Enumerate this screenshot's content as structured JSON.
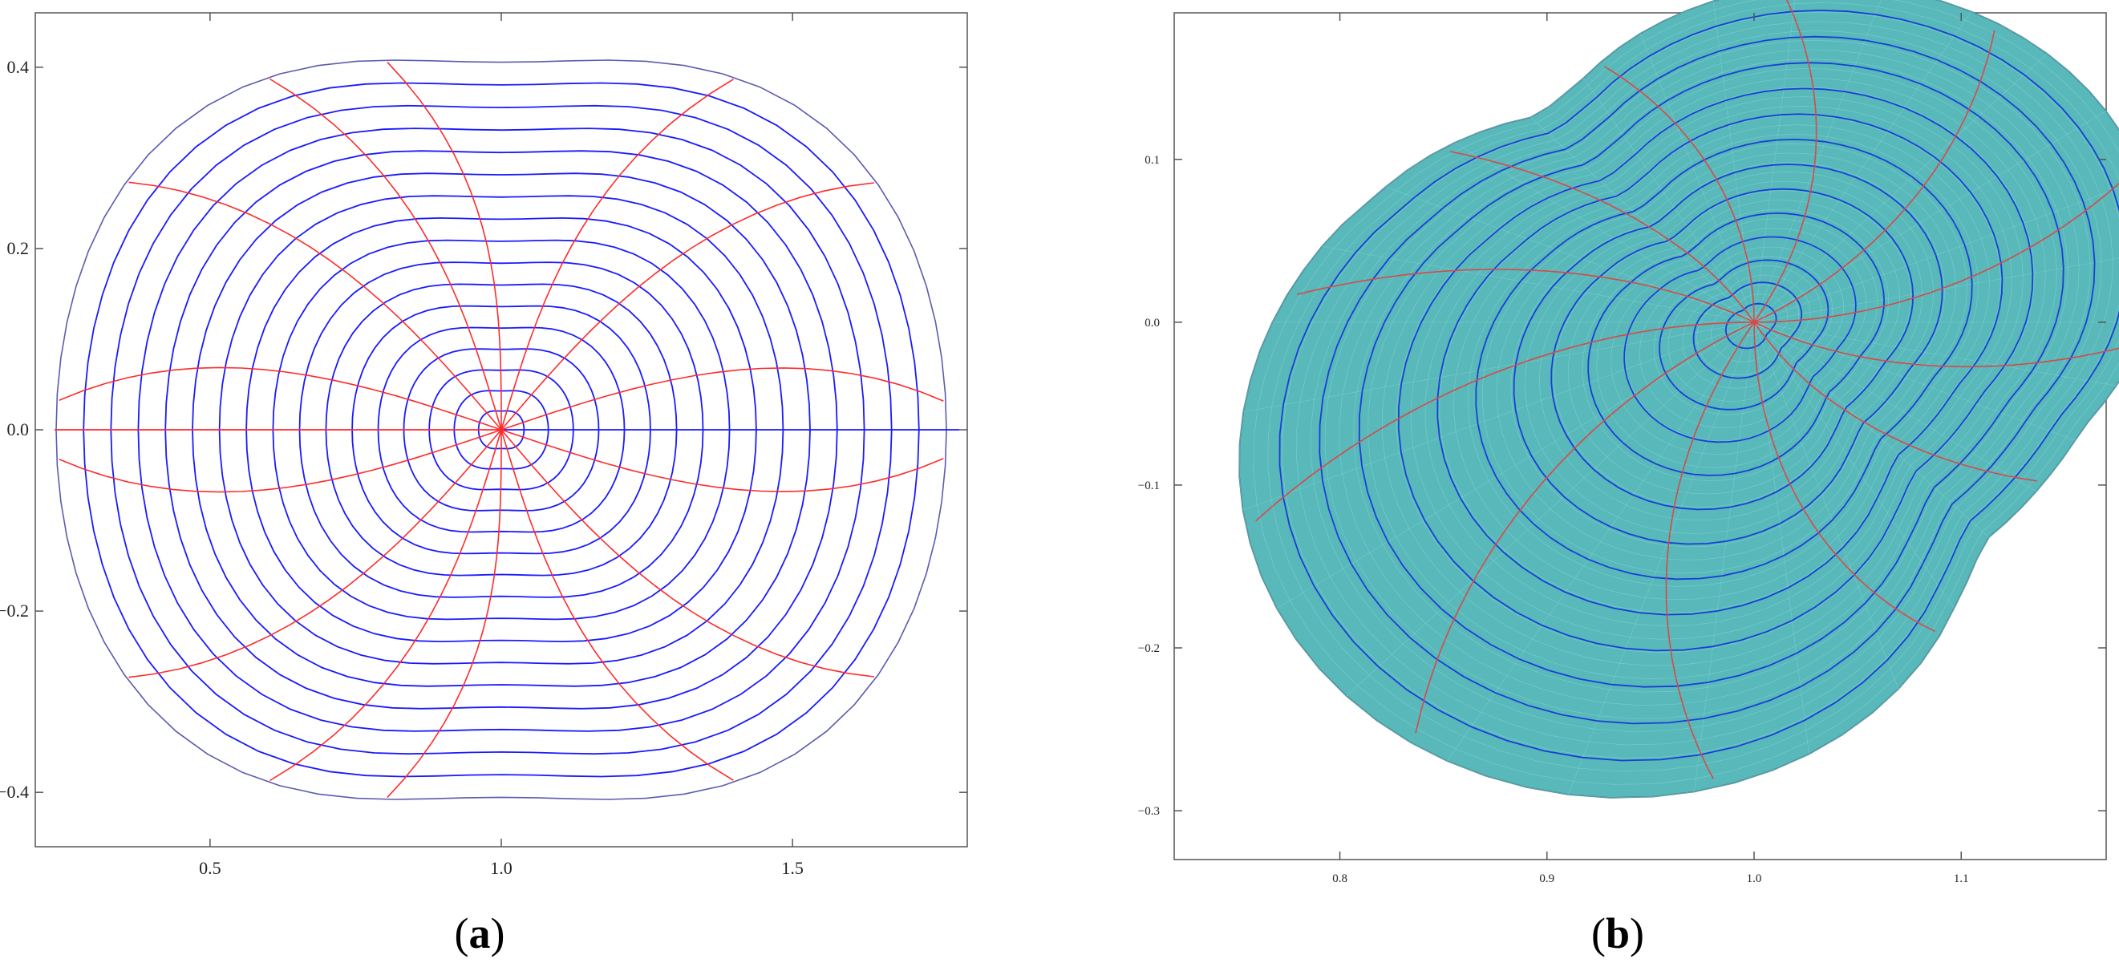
{
  "panels": [
    {
      "id": "a",
      "caption": "a",
      "x_ticks": [
        "0.5",
        "1.0",
        "1.5"
      ],
      "y_ticks": [
        "0.4",
        "0.2",
        "0.0",
        "−0.2",
        "−0.4"
      ],
      "x_tick_values": [
        0.5,
        1.0,
        1.5
      ],
      "y_tick_values": [
        0.4,
        0.2,
        0.0,
        -0.2,
        -0.4
      ],
      "xlim": [
        0.2,
        1.8
      ],
      "ylim": [
        -0.46,
        0.46
      ],
      "center": [
        1.0,
        0.0
      ],
      "level_curves": 17,
      "radial_curves": 12,
      "colors": {
        "level_curve": "#1a1aff",
        "radial_curve": "#ff2a2a",
        "boundary": "#5b5bb0",
        "frame": "#555555"
      }
    },
    {
      "id": "b",
      "caption": "b",
      "x_ticks": [
        "0.8",
        "0.9",
        "1.0",
        "1.1"
      ],
      "y_ticks": [
        "0.1",
        "0.0",
        "−0.1",
        "−0.2",
        "−0.3"
      ],
      "x_tick_values": [
        0.8,
        0.9,
        1.0,
        1.1
      ],
      "y_tick_values": [
        0.1,
        0.0,
        -0.1,
        -0.2,
        -0.3
      ],
      "xlim": [
        0.72,
        1.17
      ],
      "ylim": [
        -0.33,
        0.19
      ],
      "center": [
        1.0,
        0.0
      ],
      "level_curves": 13,
      "radial_curves": 12,
      "colors": {
        "fill": "#58b8ba",
        "level_curve": "#1a3fd6",
        "radial_curve": "#d64a4a",
        "mesh": "#7fd0d0",
        "boundary": "#3d6f80",
        "frame": "#555555"
      }
    }
  ]
}
